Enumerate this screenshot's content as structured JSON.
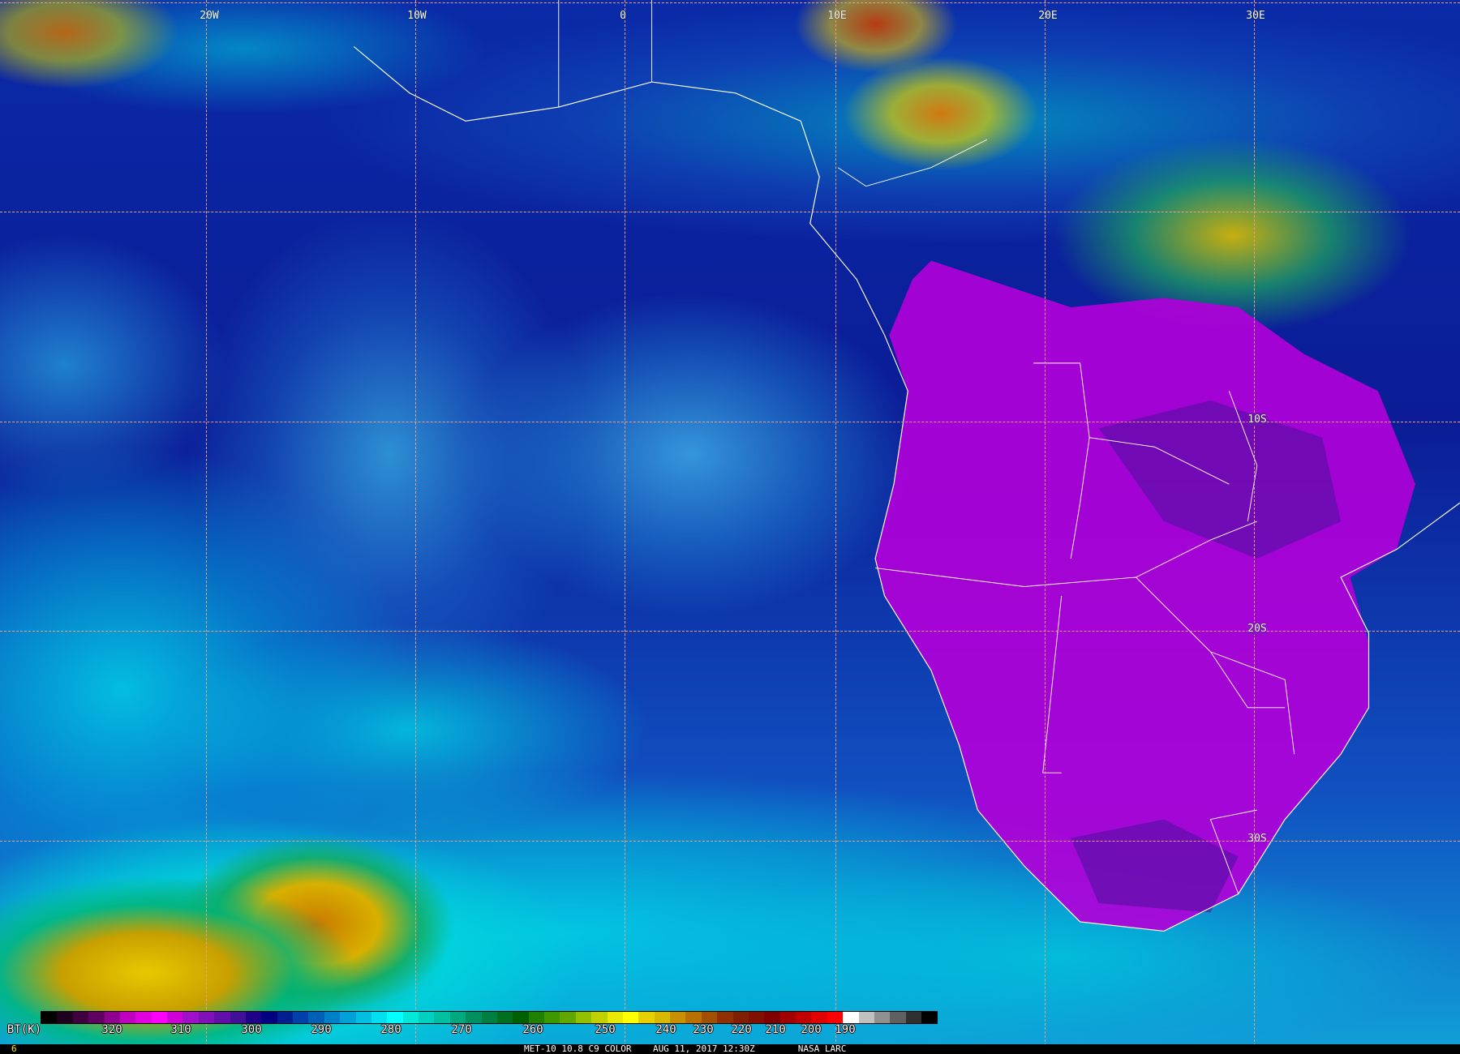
{
  "title": "MET-10 10.8 C9 COLOR    AUG 11, 2017 12:30Z        NASA LARC",
  "frame_number": "6",
  "longitude_labels": [
    "20W",
    "10W",
    "0",
    "10E",
    "20E",
    "30E"
  ],
  "latitude_labels": [
    "10S",
    "20S",
    "30S"
  ],
  "legend": {
    "unit_label": "BT(K)",
    "ticks": [
      "320",
      "310",
      "300",
      "290",
      "280",
      "270",
      "260",
      "250",
      "240",
      "230",
      "220",
      "210",
      "200",
      "190"
    ],
    "colors": [
      "#000000",
      "#200020",
      "#400040",
      "#600060",
      "#900090",
      "#c000c0",
      "#e000e0",
      "#ff00ff",
      "#d000d8",
      "#a010c8",
      "#8010b8",
      "#6010a8",
      "#401098",
      "#200088",
      "#000080",
      "#002090",
      "#0040a8",
      "#0060b8",
      "#0080c8",
      "#00a0d8",
      "#00c0e0",
      "#00e0f0",
      "#00ffff",
      "#00e8d8",
      "#00d0c0",
      "#00c0a0",
      "#00a880",
      "#009060",
      "#008040",
      "#007020",
      "#006000",
      "#208000",
      "#409800",
      "#60a800",
      "#90c000",
      "#c0d000",
      "#e8e800",
      "#ffff00",
      "#e8d000",
      "#d8b800",
      "#c89000",
      "#b87000",
      "#a05000",
      "#903000",
      "#802000",
      "#801000",
      "#800000",
      "#a00000",
      "#c00000",
      "#e00000",
      "#ff0000",
      "#ffffff",
      "#c0c0c0",
      "#909090",
      "#606060",
      "#303030",
      "#000000"
    ]
  },
  "colors": {
    "ocean": "#0b1f9e",
    "land_clear": "#c000e0",
    "grid": "#e8a08c",
    "coastline": "#ffffff"
  }
}
